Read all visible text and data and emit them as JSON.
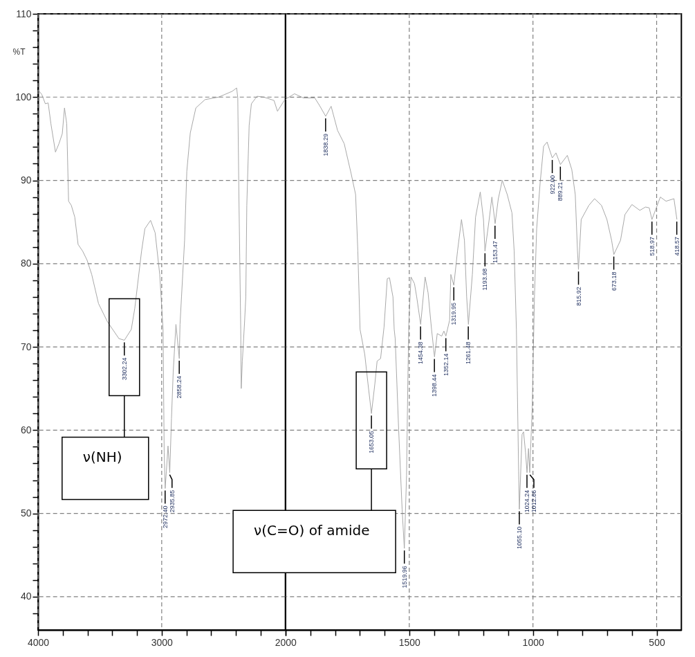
{
  "chart_data": [
    {
      "type": "line",
      "ylabel": "%T",
      "xlim": [
        4000,
        2000
      ],
      "ylim": [
        36,
        110
      ],
      "xticks": [
        4000,
        {
          "value": 3800,
          "label": null
        },
        {
          "value": 3600,
          "label": null
        },
        {
          "value": 3400,
          "label": null
        },
        {
          "value": 3200,
          "label": null
        },
        3000,
        {
          "value": 2800,
          "label": null
        },
        {
          "value": 2600,
          "label": null
        },
        {
          "value": 2400,
          "label": null
        },
        {
          "value": 2200,
          "label": null
        },
        2000
      ],
      "yticks": [
        {
          "value": 38,
          "label": null
        },
        40,
        {
          "value": 42,
          "label": null
        },
        {
          "value": 44,
          "label": null
        },
        {
          "value": 46,
          "label": null
        },
        {
          "value": 48,
          "label": null
        },
        50,
        {
          "value": 52,
          "label": null
        },
        {
          "value": 54,
          "label": null
        },
        {
          "value": 56,
          "label": null
        },
        {
          "value": 58,
          "label": null
        },
        60,
        {
          "value": 62,
          "label": null
        },
        {
          "value": 64,
          "label": null
        },
        {
          "value": 66,
          "label": null
        },
        {
          "value": 68,
          "label": null
        },
        70,
        {
          "value": 72,
          "label": null
        },
        {
          "value": 74,
          "label": null
        },
        {
          "value": 76,
          "label": null
        },
        {
          "value": 78,
          "label": null
        },
        80,
        {
          "value": 82,
          "label": null
        },
        {
          "value": 84,
          "label": null
        },
        {
          "value": 86,
          "label": null
        },
        {
          "value": 88,
          "label": null
        },
        90,
        {
          "value": 92,
          "label": null
        },
        {
          "value": 94,
          "label": null
        },
        {
          "value": 96,
          "label": null
        },
        {
          "value": 98,
          "label": null
        },
        100,
        {
          "value": 102,
          "label": null
        },
        {
          "value": 104,
          "label": null
        },
        {
          "value": 106,
          "label": null
        },
        {
          "value": 108,
          "label": null
        },
        110
      ],
      "grid": true,
      "series": [
        {
          "color": "#a8a8a8",
          "x": [
            4000,
            3969,
            3941,
            3918,
            3896,
            3859,
            3831,
            3804,
            3786,
            3768,
            3753,
            3731,
            3703,
            3676,
            3639,
            3603,
            3566,
            3511,
            3438,
            3346,
            3302,
            3246,
            3218,
            3163,
            3136,
            3090,
            3053,
            3016,
            2989,
            2980,
            2972,
            2962,
            2949,
            2935,
            2921,
            2907,
            2885,
            2858,
            2852,
            2840,
            2815,
            2797,
            2769,
            2724,
            2650,
            2540,
            2430,
            2394,
            2385,
            2376,
            2361,
            2357,
            2348,
            2330,
            2320,
            2312,
            2293,
            2275,
            2229,
            2174,
            2092,
            2064,
            2009,
            2000
          ],
          "values": [
            100.9,
            100.3,
            99.2,
            99.3,
            96.8,
            93.4,
            94.4,
            95.6,
            98.7,
            96.8,
            87.5,
            87.0,
            85.6,
            82.3,
            81.5,
            80.4,
            78.7,
            75.2,
            73.0,
            71.0,
            70.8,
            72.1,
            74.6,
            81.5,
            84.2,
            85.2,
            83.7,
            78.7,
            72.1,
            57.3,
            53.0,
            55.1,
            58.1,
            54.9,
            61.4,
            67.0,
            72.7,
            68.6,
            72.7,
            76.0,
            82.8,
            91.1,
            95.7,
            98.7,
            99.7,
            100.0,
            100.7,
            101.1,
            99.9,
            88.3,
            72.1,
            65.0,
            68.3,
            73.0,
            76.0,
            87.0,
            96.6,
            99.2,
            100.1,
            100.0,
            99.6,
            98.3,
            99.6,
            99.7
          ]
        }
      ],
      "annotations": [
        {
          "text": "3302.24",
          "x": 3302.24,
          "y": 70.8
        },
        "ν(NH)",
        {
          "text": "2972.40",
          "x": 2972.4,
          "y": 53.0
        },
        {
          "text": "2935.85",
          "x": 2935.85,
          "y": 54.9
        },
        {
          "text": "2858.24",
          "x": 2858.24,
          "y": 68.6
        }
      ]
    },
    {
      "type": "line",
      "xlim": [
        2000,
        400
      ],
      "ylim": [
        36,
        110
      ],
      "tick_labels": "x",
      "xticks": [
        {
          "value": 2000,
          "label": null
        },
        {
          "value": 1900,
          "label": null
        },
        {
          "value": 1800,
          "label": null
        },
        {
          "value": 1700,
          "label": null
        },
        {
          "value": 1600,
          "label": null
        },
        1500,
        {
          "value": 1400,
          "label": null
        },
        {
          "value": 1300,
          "label": null
        },
        {
          "value": 1200,
          "label": null
        },
        {
          "value": 1100,
          "label": null
        },
        1000,
        {
          "value": 900,
          "label": null
        },
        {
          "value": 800,
          "label": null
        },
        {
          "value": 700,
          "label": null
        },
        {
          "value": 600,
          "label": null
        },
        500
      ],
      "yticks": [
        40,
        50,
        60,
        70,
        80,
        90,
        100,
        110
      ],
      "grid": true,
      "series": [
        {
          "color": "#a8a8a8",
          "x": [
            2000,
            1992,
            1964,
            1928,
            1882,
            1863,
            1838,
            1816,
            1790,
            1763,
            1735,
            1717,
            1708,
            1699,
            1680,
            1667,
            1653,
            1639,
            1630,
            1616,
            1602,
            1589,
            1580,
            1566,
            1561,
            1557,
            1543,
            1529,
            1520,
            1511,
            1506,
            1502,
            1493,
            1479,
            1470,
            1454,
            1436,
            1424,
            1410,
            1398,
            1387,
            1369,
            1360,
            1352,
            1337,
            1332,
            1320,
            1305,
            1289,
            1277,
            1268,
            1261,
            1245,
            1232,
            1213,
            1200,
            1194,
            1177,
            1166,
            1153,
            1140,
            1124,
            1104,
            1085,
            1076,
            1067,
            1063,
            1058,
            1055,
            1044,
            1038,
            1030,
            1024,
            1018,
            1013,
            1003,
            994,
            985,
            971,
            957,
            943,
            922,
            907,
            889,
            861,
            843,
            829,
            820,
            816,
            805,
            774,
            751,
            723,
            701,
            682,
            673,
            646,
            628,
            600,
            568,
            545,
            530,
            519,
            485,
            462,
            430,
            418
          ],
          "values": [
            99.7,
            99.9,
            100.4,
            99.9,
            99.9,
            99.0,
            97.7,
            98.9,
            96.0,
            94.4,
            90.8,
            88.3,
            81.5,
            72.1,
            69.1,
            65.6,
            62.0,
            65.6,
            68.3,
            68.6,
            72.4,
            78.2,
            78.3,
            76.0,
            72.1,
            71.0,
            60.1,
            50.5,
            45.8,
            54.6,
            65.6,
            72.7,
            78.4,
            77.6,
            76.0,
            72.7,
            78.4,
            76.5,
            72.1,
            68.8,
            71.6,
            71.3,
            71.9,
            71.3,
            73.2,
            78.7,
            77.4,
            81.5,
            85.3,
            82.8,
            76.0,
            72.7,
            78.7,
            85.6,
            88.6,
            85.3,
            81.5,
            85.3,
            88.0,
            84.8,
            87.8,
            90.0,
            88.3,
            86.1,
            81.5,
            72.1,
            64.7,
            55.1,
            50.5,
            59.5,
            59.8,
            57.3,
            54.9,
            57.8,
            54.9,
            62.8,
            76.0,
            84.2,
            89.7,
            94.1,
            94.6,
            92.7,
            93.3,
            91.9,
            93.0,
            91.3,
            88.3,
            81.5,
            79.3,
            85.3,
            87.0,
            87.8,
            87.0,
            85.3,
            82.8,
            81.1,
            82.8,
            85.9,
            87.1,
            86.4,
            86.8,
            86.7,
            85.3,
            88.0,
            87.5,
            87.8,
            85.3
          ]
        }
      ],
      "annotations": [
        {
          "text": "1838.29",
          "x": 1838.29,
          "y": 97.7
        },
        {
          "text": "1653.05",
          "x": 1653.05,
          "y": 62.0
        },
        "ν(C=O) of amide",
        {
          "text": "1519.96",
          "x": 1519.96,
          "y": 45.8
        },
        {
          "text": "1454.38",
          "x": 1454.38,
          "y": 72.7
        },
        {
          "text": "1398.44",
          "x": 1398.44,
          "y": 68.8
        },
        {
          "text": "1352.14",
          "x": 1352.14,
          "y": 71.3
        },
        {
          "text": "1319.95",
          "x": 1319.95,
          "y": 77.4
        },
        {
          "text": "1261.48",
          "x": 1261.48,
          "y": 72.7
        },
        {
          "text": "1193.98",
          "x": 1193.98,
          "y": 81.5
        },
        {
          "text": "1153.47",
          "x": 1153.47,
          "y": 84.8
        },
        {
          "text": "1055.10",
          "x": 1055.1,
          "y": 50.5
        },
        {
          "text": "1024.24",
          "x": 1024.24,
          "y": 54.9
        },
        {
          "text": "1012.66",
          "x": 1012.66,
          "y": 54.9
        },
        {
          "text": "922.00",
          "x": 922.0,
          "y": 92.7
        },
        {
          "text": "889.21",
          "x": 889.21,
          "y": 91.9
        },
        {
          "text": "815.92",
          "x": 815.92,
          "y": 79.3
        },
        {
          "text": "673.18",
          "x": 673.18,
          "y": 81.1
        },
        {
          "text": "518.97",
          "x": 518.97,
          "y": 85.3
        },
        {
          "text": "418.57",
          "x": 418.57,
          "y": 85.3
        }
      ]
    }
  ]
}
